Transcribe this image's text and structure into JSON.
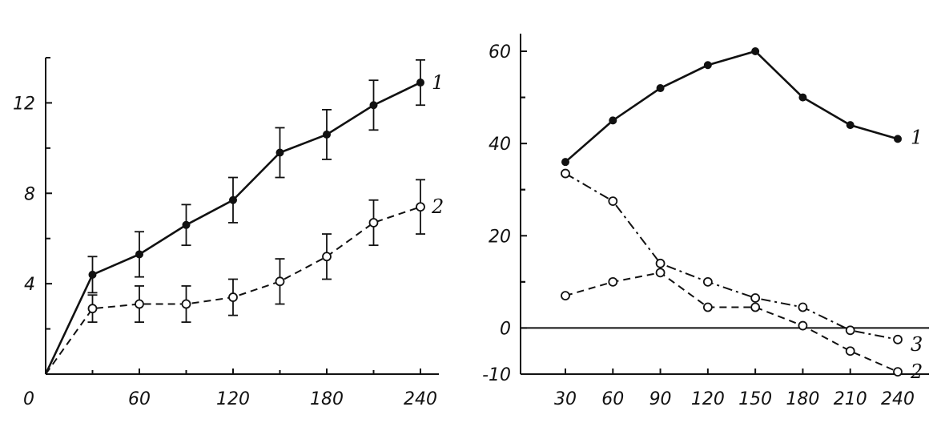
{
  "chart_data": [
    {
      "type": "line",
      "title": "",
      "xlabel": "",
      "ylabel": "",
      "xlim": [
        0,
        240
      ],
      "ylim": [
        0,
        14
      ],
      "origin_label": "0",
      "xticks": [
        60,
        120,
        180,
        240
      ],
      "yticks": [
        4,
        8,
        12
      ],
      "grid": false,
      "series": [
        {
          "name": "1",
          "style": "solid",
          "marker": "filled-circle",
          "points": [
            {
              "x": 0,
              "y": 0
            },
            {
              "x": 30,
              "y": 4.4,
              "err": 0.8
            },
            {
              "x": 60,
              "y": 5.3,
              "err": 1.0
            },
            {
              "x": 90,
              "y": 6.6,
              "err": 0.9
            },
            {
              "x": 120,
              "y": 7.7,
              "err": 1.0
            },
            {
              "x": 150,
              "y": 9.8,
              "err": 1.1
            },
            {
              "x": 180,
              "y": 10.6,
              "err": 1.1
            },
            {
              "x": 210,
              "y": 11.9,
              "err": 1.1
            },
            {
              "x": 240,
              "y": 12.9,
              "err": 1.0
            }
          ]
        },
        {
          "name": "2",
          "style": "dashed",
          "marker": "open-circle",
          "points": [
            {
              "x": 0,
              "y": 0
            },
            {
              "x": 30,
              "y": 2.9,
              "err": 0.6
            },
            {
              "x": 60,
              "y": 3.1,
              "err": 0.8
            },
            {
              "x": 90,
              "y": 3.1,
              "err": 0.8
            },
            {
              "x": 120,
              "y": 3.4,
              "err": 0.8
            },
            {
              "x": 150,
              "y": 4.1,
              "err": 1.0
            },
            {
              "x": 180,
              "y": 5.2,
              "err": 1.0
            },
            {
              "x": 210,
              "y": 6.7,
              "err": 1.0
            },
            {
              "x": 240,
              "y": 7.4,
              "err": 1.2
            }
          ]
        }
      ]
    },
    {
      "type": "line",
      "title": "",
      "xlabel": "",
      "ylabel": "",
      "xlim": [
        15,
        255
      ],
      "ylim": [
        -10,
        65
      ],
      "xticks": [
        30,
        60,
        90,
        120,
        150,
        180,
        210,
        240
      ],
      "yticks": [
        -10,
        0,
        20,
        40,
        60
      ],
      "zero_line": true,
      "grid": false,
      "series": [
        {
          "name": "1",
          "style": "solid",
          "marker": "filled-circle",
          "points": [
            {
              "x": 30,
              "y": 36
            },
            {
              "x": 60,
              "y": 45
            },
            {
              "x": 90,
              "y": 52
            },
            {
              "x": 120,
              "y": 57
            },
            {
              "x": 150,
              "y": 60
            },
            {
              "x": 180,
              "y": 50
            },
            {
              "x": 210,
              "y": 44
            },
            {
              "x": 240,
              "y": 41
            }
          ]
        },
        {
          "name": "2",
          "style": "dashed",
          "marker": "open-circle",
          "points": [
            {
              "x": 30,
              "y": 7
            },
            {
              "x": 60,
              "y": 10
            },
            {
              "x": 90,
              "y": 12
            },
            {
              "x": 120,
              "y": 4.5
            },
            {
              "x": 150,
              "y": 4.5
            },
            {
              "x": 180,
              "y": 0.5
            },
            {
              "x": 210,
              "y": -5
            },
            {
              "x": 240,
              "y": -9.5
            }
          ]
        },
        {
          "name": "3",
          "style": "dash-dot",
          "marker": "open-circle",
          "points": [
            {
              "x": 30,
              "y": 33.5
            },
            {
              "x": 60,
              "y": 27.5
            },
            {
              "x": 90,
              "y": 14
            },
            {
              "x": 120,
              "y": 10
            },
            {
              "x": 150,
              "y": 6.5
            },
            {
              "x": 180,
              "y": 4.5
            },
            {
              "x": 210,
              "y": -0.5
            },
            {
              "x": 240,
              "y": -2.5
            }
          ]
        }
      ]
    }
  ]
}
